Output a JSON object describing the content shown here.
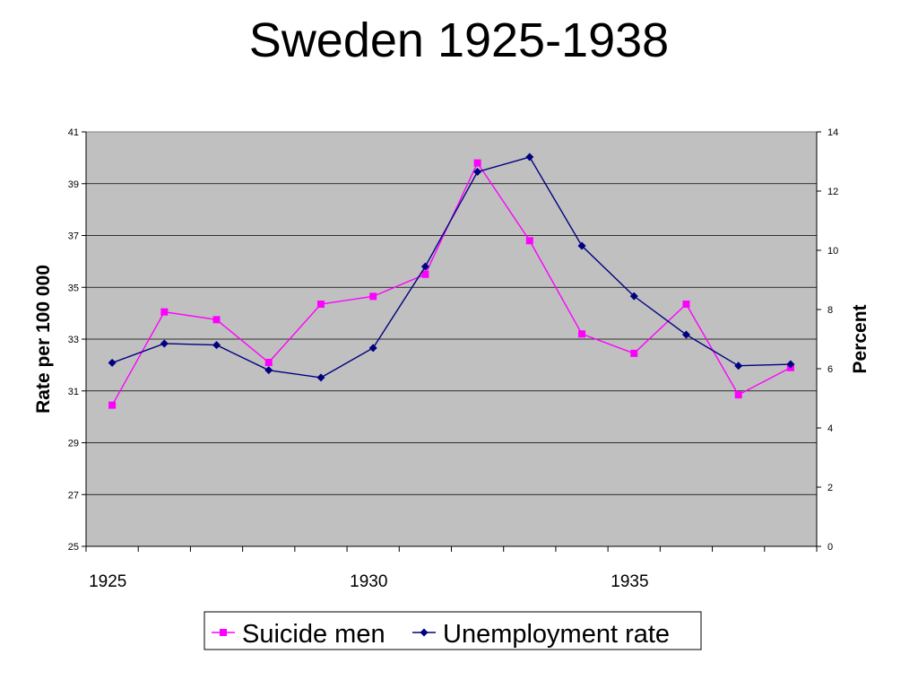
{
  "chart_data": {
    "type": "line",
    "title": "Sweden 1925-1938",
    "ylabel": "Rate per 100 000",
    "y2label": "Percent",
    "xlim": [
      1924.5,
      1938.5
    ],
    "ylim": [
      25,
      41
    ],
    "y2lim": [
      0,
      14
    ],
    "y_ticks": [
      "25",
      "27",
      "29",
      "31",
      "33",
      "35",
      "37",
      "39",
      "41"
    ],
    "y2_ticks": [
      "0",
      "2",
      "4",
      "6",
      "8",
      "10",
      "12",
      "14"
    ],
    "x_tick_labels": [
      {
        "year": 1925,
        "label": "1925"
      },
      {
        "year": 1930,
        "label": "1930"
      },
      {
        "year": 1935,
        "label": "1935"
      }
    ],
    "grid": true,
    "legend_position": "bottom",
    "plot_background": "#c0c0c0",
    "series": [
      {
        "name": "Suicide men",
        "axis": "left",
        "color": "#ff00ff",
        "marker": "square",
        "x": [
          1925,
          1926,
          1927,
          1928,
          1929,
          1930,
          1931,
          1932,
          1933,
          1934,
          1935,
          1936,
          1937,
          1938
        ],
        "y": [
          30.45,
          34.05,
          33.75,
          32.1,
          34.35,
          34.65,
          35.5,
          39.8,
          36.8,
          33.2,
          32.45,
          34.35,
          30.85,
          31.9
        ]
      },
      {
        "name": "Unemployment rate",
        "axis": "right",
        "color": "#000080",
        "marker": "diamond",
        "x": [
          1925,
          1926,
          1927,
          1928,
          1929,
          1930,
          1931,
          1932,
          1933,
          1934,
          1935,
          1936,
          1937,
          1938
        ],
        "y": [
          6.2,
          6.85,
          6.8,
          5.95,
          5.7,
          6.7,
          9.45,
          12.65,
          13.15,
          10.15,
          8.45,
          7.15,
          6.1,
          6.15
        ]
      }
    ]
  }
}
